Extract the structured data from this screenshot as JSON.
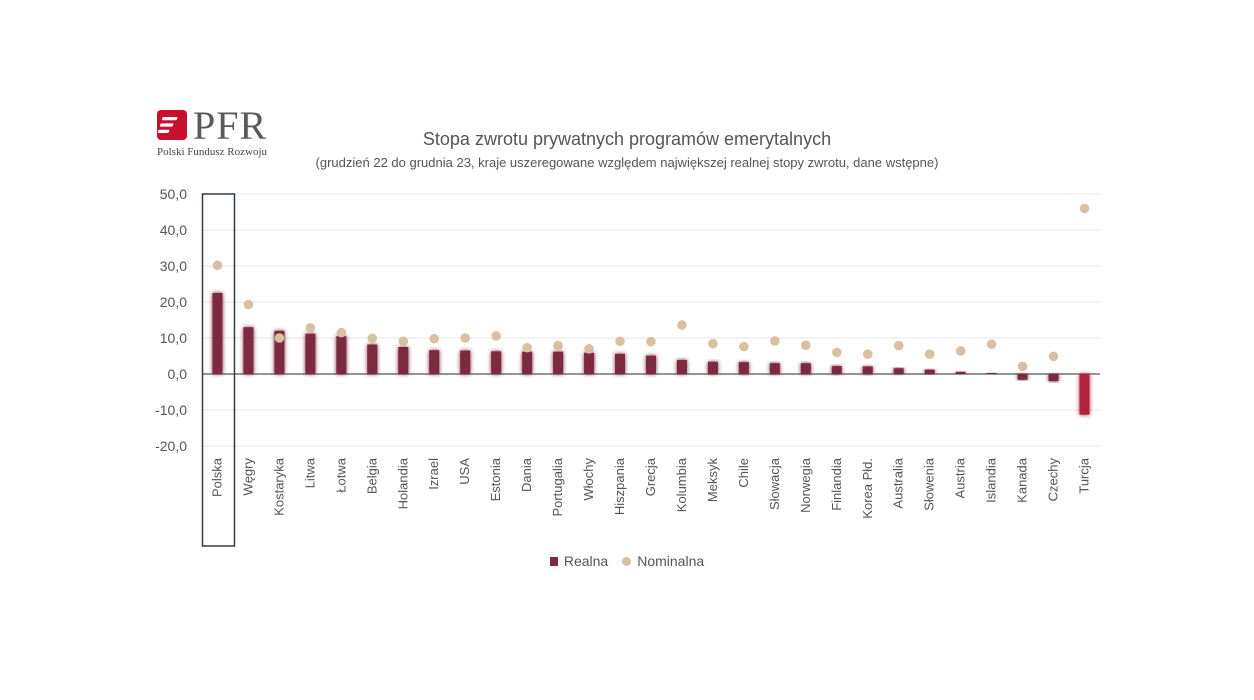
{
  "logo": {
    "name": "PFR",
    "subtitle": "Polski Fundusz Rozwoju"
  },
  "chart_data": {
    "type": "bar",
    "title": "Stopa zwrotu prywatnych programów emerytalnych",
    "subtitle": "(grudzień 22 do grudnia 23, kraje uszeregowane względem największej realnej stopy zwrotu, dane wstępne)",
    "xlabel": "",
    "ylabel": "",
    "ylim": [
      -20,
      50
    ],
    "yticks": [
      "50,0",
      "40,0",
      "30,0",
      "20,0",
      "10,0",
      "0,0",
      "-10,0",
      "-20,0"
    ],
    "grid": true,
    "legend_position": "bottom",
    "highlighted_category": "Polska",
    "categories": [
      "Polska",
      "Węgry",
      "Kostaryka",
      "Litwa",
      "Łotwa",
      "Belgia",
      "Holandia",
      "Izrael",
      "USA",
      "Estonia",
      "Dania",
      "Portugalia",
      "Włochy",
      "Hiszpania",
      "Grecja",
      "Kolumbia",
      "Meksyk",
      "Chile",
      "Słowacja",
      "Norwegia",
      "Finlandia",
      "Korea Płd.",
      "Australia",
      "Słowenia",
      "Austria",
      "Islandia",
      "Kanada",
      "Czechy",
      "Turcja"
    ],
    "series": [
      {
        "name": "Realna",
        "type": "bar",
        "color": "#7b2a3f",
        "values": [
          22.5,
          13.0,
          12.0,
          11.2,
          10.5,
          8.2,
          7.5,
          6.6,
          6.5,
          6.3,
          6.2,
          6.2,
          5.9,
          5.6,
          5.1,
          3.9,
          3.4,
          3.3,
          3.0,
          3.0,
          2.2,
          2.1,
          1.6,
          1.2,
          0.6,
          0.3,
          -1.6,
          -2.0,
          -11.3
        ]
      },
      {
        "name": "Nominalna",
        "type": "scatter",
        "color": "#d9bfa4",
        "values": [
          30.2,
          19.3,
          10.0,
          12.8,
          11.5,
          9.9,
          9.1,
          9.8,
          10.0,
          10.6,
          7.3,
          7.9,
          7.0,
          9.1,
          9.0,
          13.6,
          8.4,
          7.6,
          9.2,
          8.0,
          6.0,
          5.5,
          7.9,
          5.5,
          6.4,
          8.3,
          2.1,
          4.9,
          46.0
        ]
      }
    ]
  },
  "legend": {
    "real_label": "Realna",
    "nominal_label": "Nominalna"
  }
}
